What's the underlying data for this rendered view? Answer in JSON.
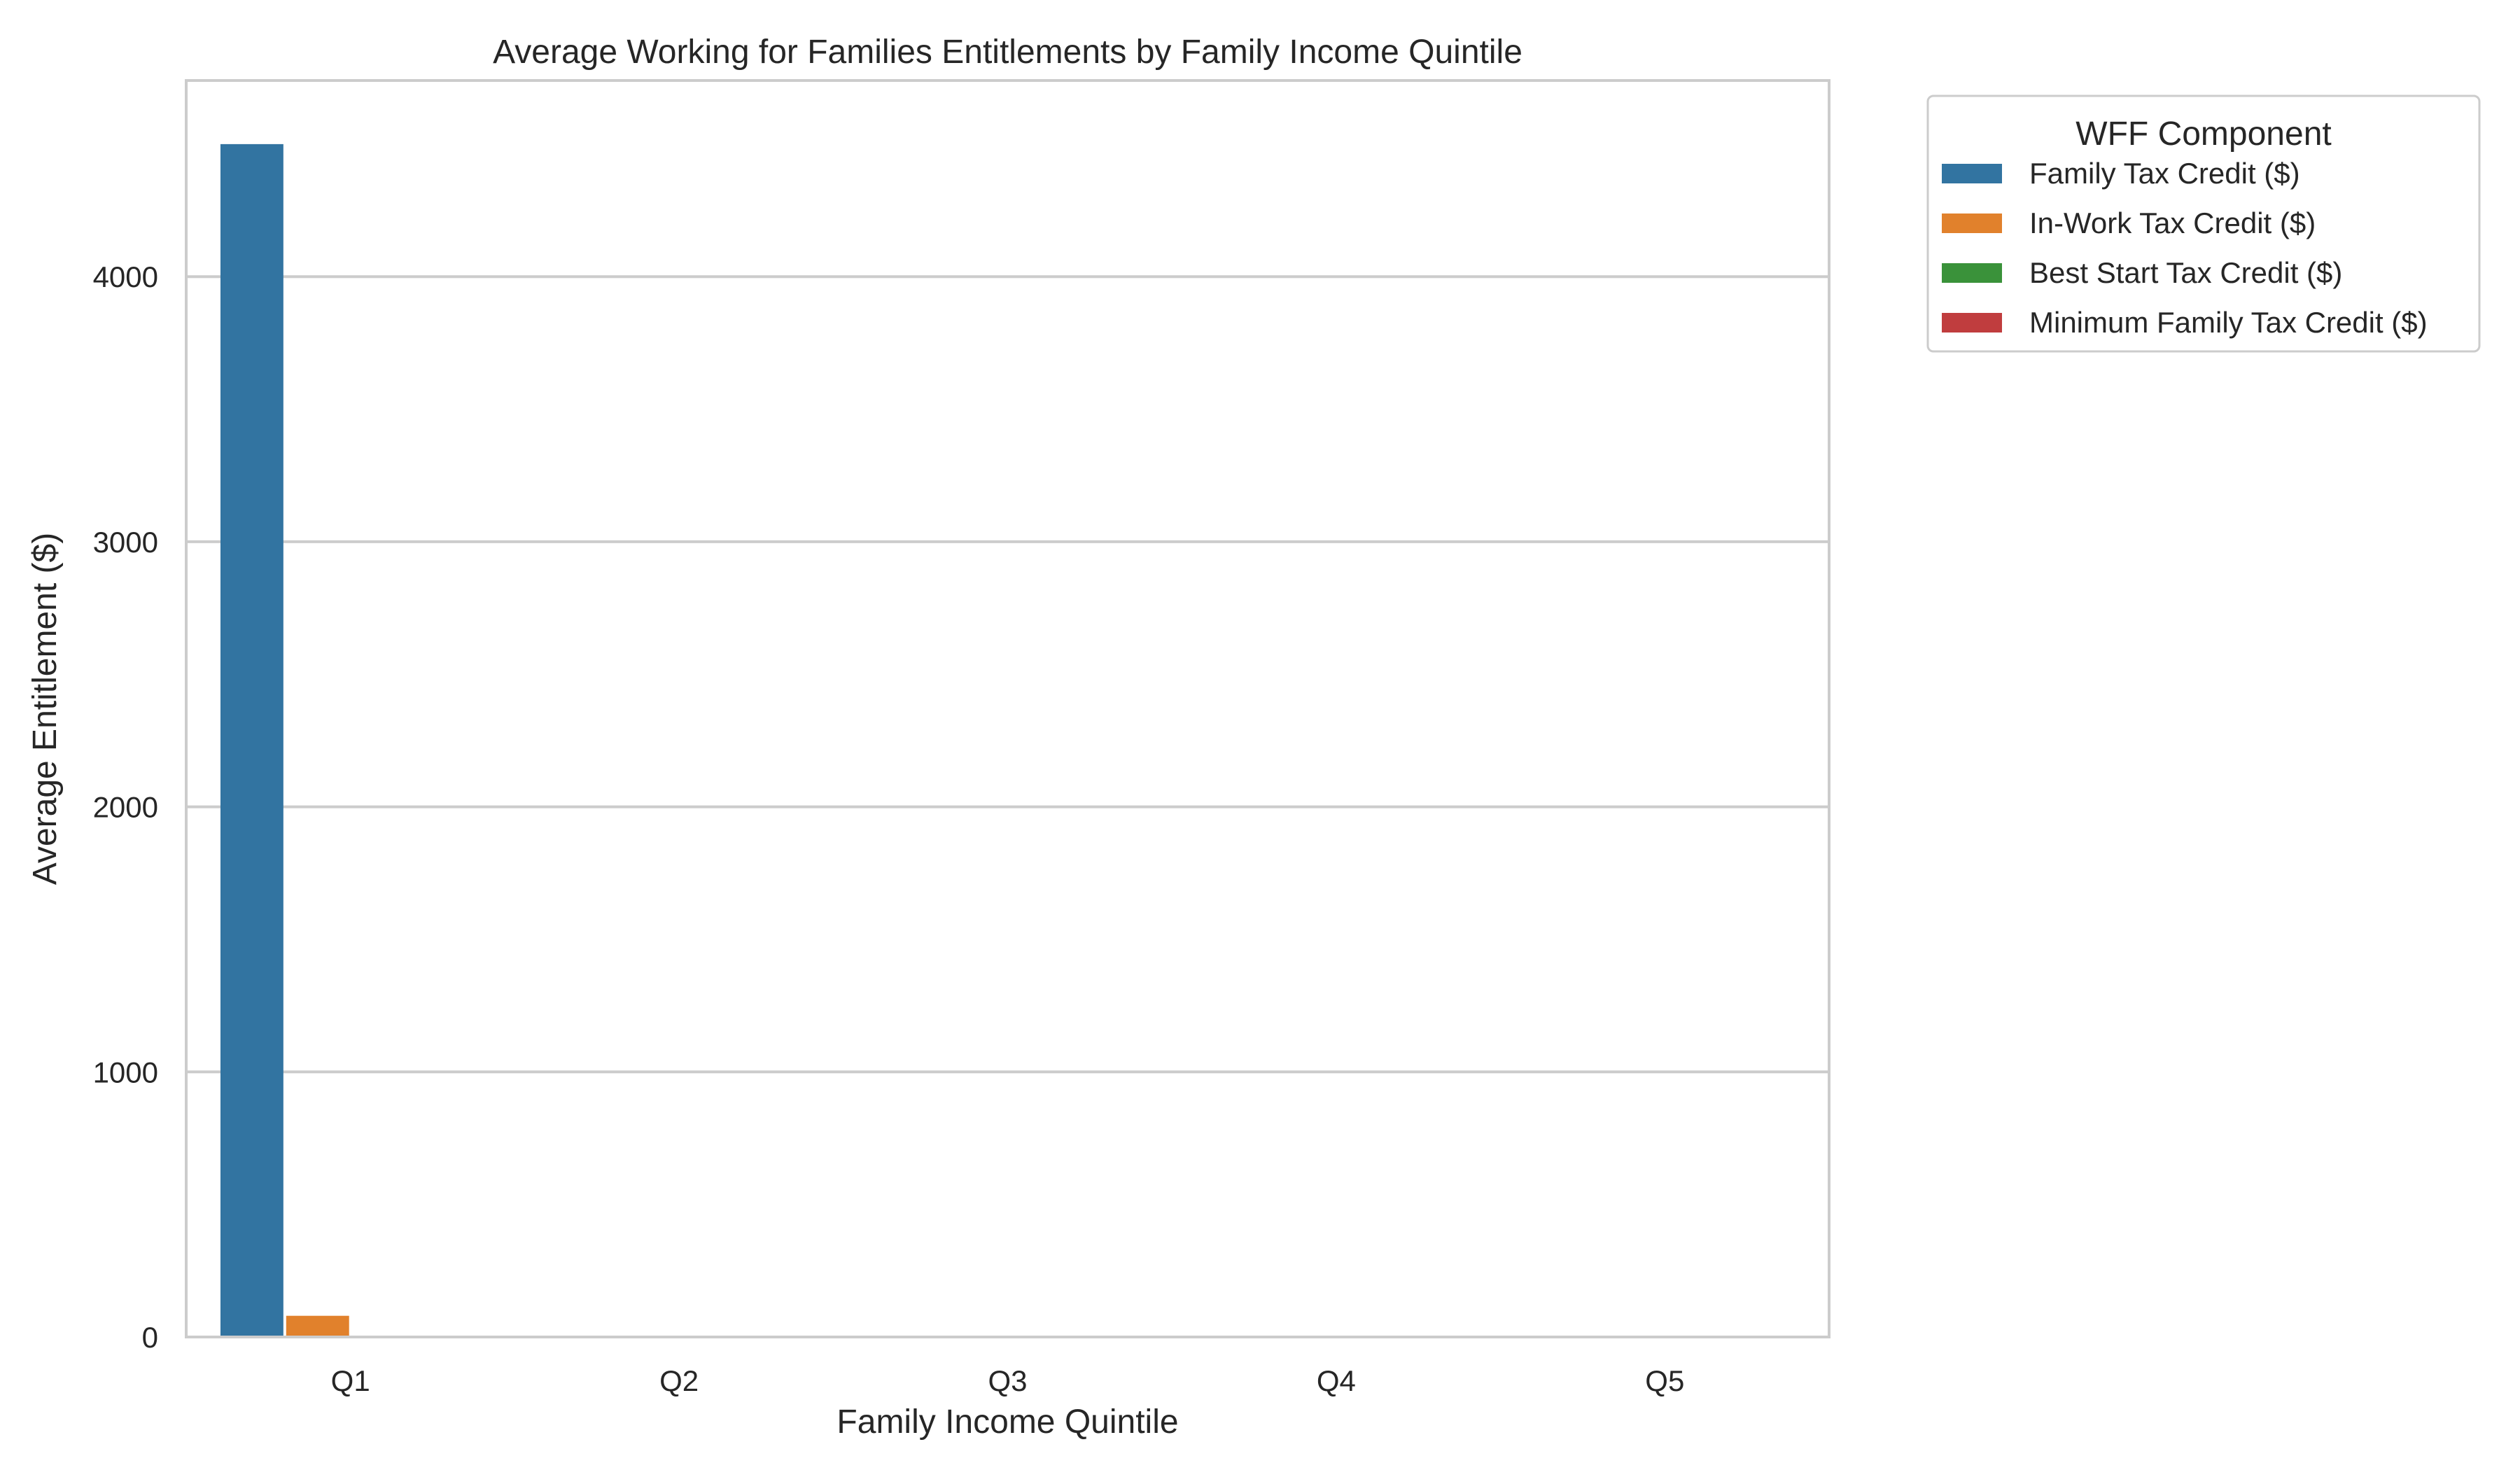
{
  "chart_data": {
    "type": "bar",
    "title": "Average Working for Families Entitlements by Family Income Quintile",
    "xlabel": "Family Income Quintile",
    "ylabel": "Average Entitlement ($)",
    "categories": [
      "Q1",
      "Q2",
      "Q3",
      "Q4",
      "Q5"
    ],
    "ylim": [
      0,
      4740
    ],
    "yticks": [
      0,
      1000,
      2000,
      3000,
      4000
    ],
    "grid": "horizontal",
    "legend_title": "WFF Component",
    "legend_position": "outside-top-right",
    "series": [
      {
        "name": "Family Tax Credit ($)",
        "color": "#3274a1",
        "values": [
          4500,
          0,
          0,
          0,
          0
        ]
      },
      {
        "name": "In-Work Tax Credit ($)",
        "color": "#e1812c",
        "values": [
          80,
          0,
          0,
          0,
          0
        ]
      },
      {
        "name": "Best Start Tax Credit ($)",
        "color": "#3a923a",
        "values": [
          0,
          0,
          0,
          0,
          0
        ]
      },
      {
        "name": "Minimum Family Tax Credit ($)",
        "color": "#c03d3e",
        "values": [
          0,
          0,
          0,
          0,
          0
        ]
      }
    ]
  }
}
